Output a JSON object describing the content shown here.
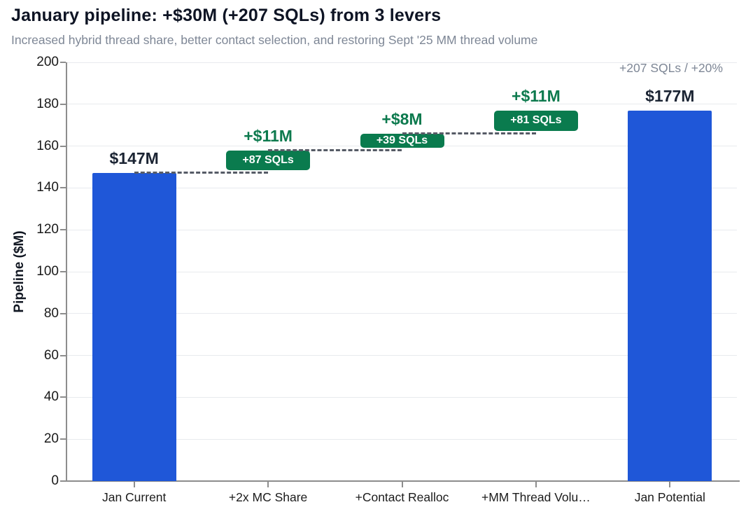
{
  "header": {
    "title": "January pipeline: +$30M (+207 SQLs) from 3 levers",
    "subtitle": "Increased hybrid thread share, better contact selection, and restoring Sept '25 MM thread volume"
  },
  "chart_data": {
    "type": "bar",
    "subtype": "waterfall",
    "title": "January pipeline: +$30M (+207 SQLs) from 3 levers",
    "subtitle": "Increased hybrid thread share, better contact selection, and restoring Sept '25 MM thread volume",
    "xlabel": "",
    "ylabel": "Pipeline ($M)",
    "ylim": [
      0,
      200
    ],
    "yticks": [
      0,
      20,
      40,
      60,
      80,
      100,
      120,
      140,
      160,
      180,
      200
    ],
    "grid": "horizontal",
    "legend": "none",
    "categories": [
      "Jan Current",
      "+2x MC Share",
      "+Contact Realloc",
      "+MM Thread Volu…",
      "Jan Potential"
    ],
    "bars": [
      {
        "category": "Jan Current",
        "measure": "absolute",
        "start": 0,
        "end": 147,
        "value_label": "$147M",
        "sql_label": null
      },
      {
        "category": "+2x MC Share",
        "measure": "relative",
        "start": 147,
        "end": 158,
        "value_label": "+$11M",
        "sql_label": "+87 SQLs"
      },
      {
        "category": "+Contact Realloc",
        "measure": "relative",
        "start": 158,
        "end": 166,
        "value_label": "+$8M",
        "sql_label": "+39 SQLs"
      },
      {
        "category": "+MM Thread Volu…",
        "measure": "relative",
        "start": 166,
        "end": 177,
        "value_label": "+$11M",
        "sql_label": "+81 SQLs"
      },
      {
        "category": "Jan Potential",
        "measure": "absolute",
        "start": 0,
        "end": 177,
        "value_label": "$177M",
        "sql_label": null
      }
    ],
    "connectors": [
      {
        "level": 147,
        "from": 0,
        "to": 1
      },
      {
        "level": 158,
        "from": 1,
        "to": 2
      },
      {
        "level": 166,
        "from": 2,
        "to": 3
      }
    ],
    "annotation": "+207 SQLs / +20%",
    "colors": {
      "total_bar": "#1f57d8",
      "delta_bar": "#0a7b4e",
      "delta_label_text": "#0d7a4e",
      "total_label_text": "#1b2433",
      "sql_label_text": "#ffffff",
      "connector": "#565b66",
      "grid": "#e8eaee",
      "axis": "#8d8d8d",
      "tick_text": "#1a1a1a",
      "title_text": "#0e1424",
      "subtitle_text": "#7e8796",
      "annotation_text": "#7e8796"
    }
  }
}
